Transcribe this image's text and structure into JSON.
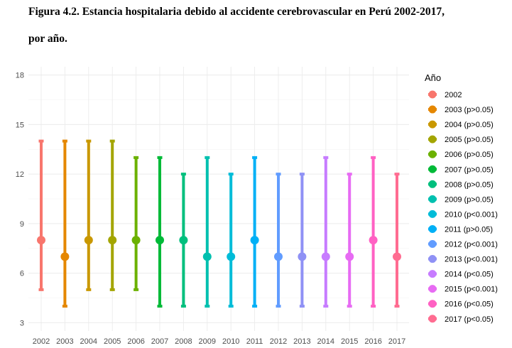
{
  "figure": {
    "title_line1": "Figura 4.2. Estancia hospitalaria debido al accidente cerebrovascular en Perú 2002-2017,",
    "title_line2": "por año."
  },
  "chart_data": {
    "type": "errorbar",
    "title": "Figura 4.2. Estancia hospitalaria debido al accidente cerebrovascular en Perú 2002-2017, por año.",
    "xlabel": "",
    "ylabel": "",
    "ylim": [
      2.5,
      18.5
    ],
    "yticks": [
      3,
      6,
      9,
      12,
      15,
      18
    ],
    "grid": true,
    "legend_title": "Año",
    "legend_position": "right",
    "categories": [
      "2002",
      "2003",
      "2004",
      "2005",
      "2006",
      "2007",
      "2008",
      "2009",
      "2010",
      "2011",
      "2012",
      "2013",
      "2014",
      "2015",
      "2016",
      "2017"
    ],
    "series": [
      {
        "x": "2002",
        "label": "2002",
        "median": 8,
        "low": 5,
        "high": 14,
        "color": "#F8766D"
      },
      {
        "x": "2003",
        "label": "2003 (p>0.05)",
        "median": 7,
        "low": 4,
        "high": 14,
        "color": "#E58700"
      },
      {
        "x": "2004",
        "label": "2004 (p>0.05)",
        "median": 8,
        "low": 5,
        "high": 14,
        "color": "#C99800"
      },
      {
        "x": "2005",
        "label": "2005 (p>0.05)",
        "median": 8,
        "low": 5,
        "high": 14,
        "color": "#A3A500"
      },
      {
        "x": "2006",
        "label": "2006 (p>0.05)",
        "median": 8,
        "low": 5,
        "high": 13,
        "color": "#6BB100"
      },
      {
        "x": "2007",
        "label": "2007 (p>0.05)",
        "median": 8,
        "low": 4,
        "high": 13,
        "color": "#00BA38"
      },
      {
        "x": "2008",
        "label": "2008 (p>0.05)",
        "median": 8,
        "low": 4,
        "high": 12,
        "color": "#00BF7D"
      },
      {
        "x": "2009",
        "label": "2009 (p>0.05)",
        "median": 7,
        "low": 4,
        "high": 13,
        "color": "#00C0AF"
      },
      {
        "x": "2010",
        "label": "2010 (p<0.001)",
        "median": 7,
        "low": 4,
        "high": 12,
        "color": "#00BCD8"
      },
      {
        "x": "2011",
        "label": "2011 (p>0.05)",
        "median": 8,
        "low": 4,
        "high": 13,
        "color": "#00B0F6"
      },
      {
        "x": "2012",
        "label": "2012 (p<0.001)",
        "median": 7,
        "low": 4,
        "high": 12,
        "color": "#619CFF"
      },
      {
        "x": "2013",
        "label": "2013 (p<0.001)",
        "median": 7,
        "low": 4,
        "high": 12,
        "color": "#8F91F5"
      },
      {
        "x": "2014",
        "label": "2014 (p<0.05)",
        "median": 7,
        "low": 4,
        "high": 13,
        "color": "#C77CFF"
      },
      {
        "x": "2015",
        "label": "2015 (p<0.001)",
        "median": 7,
        "low": 4,
        "high": 12,
        "color": "#E76BF3"
      },
      {
        "x": "2016",
        "label": "2016 (p<0.05)",
        "median": 8,
        "low": 4,
        "high": 13,
        "color": "#FF61C3"
      },
      {
        "x": "2017",
        "label": "2017 (p<0.05)",
        "median": 7,
        "low": 4,
        "high": 12,
        "color": "#FF6C91"
      }
    ]
  }
}
